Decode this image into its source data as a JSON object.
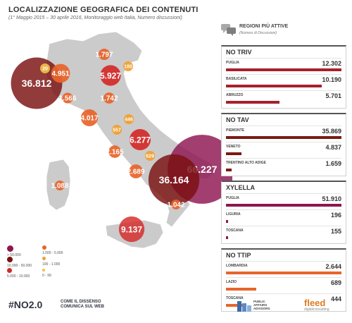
{
  "title": "LOCALIZZAZIONE GEOGRAFICA DEI CONTENUTI",
  "subtitle": "(1° Maggio 2015 – 30 aprile 2016, Monitoraggio web Italia, Numero discussioni)",
  "chart_data": {
    "type": "bubble-map",
    "title": "LOCALIZZAZIONE GEOGRAFICA DEI CONTENUTI",
    "bubbles": [
      {
        "value": "36.812",
        "v": 36812,
        "cls": "10000-50000"
      },
      {
        "value": "20",
        "v": 20,
        "cls": "0-99"
      },
      {
        "value": "4.951",
        "v": 4951,
        "cls": "1000-5000"
      },
      {
        "value": "1.797",
        "v": 1797,
        "cls": "1000-5000"
      },
      {
        "value": "5.927",
        "v": 5927,
        "cls": "5000-10000"
      },
      {
        "value": "180",
        "v": 180,
        "cls": "100-1000"
      },
      {
        "value": "1.566",
        "v": 1566,
        "cls": "1000-5000"
      },
      {
        "value": "1.742",
        "v": 1742,
        "cls": "1000-5000"
      },
      {
        "value": "4.017",
        "v": 4017,
        "cls": "1000-5000"
      },
      {
        "value": "446",
        "v": 446,
        "cls": "100-1000"
      },
      {
        "value": "557",
        "v": 557,
        "cls": "100-1000"
      },
      {
        "value": "6.277",
        "v": 6277,
        "cls": "5000-10000"
      },
      {
        "value": "2.165",
        "v": 2165,
        "cls": "1000-5000"
      },
      {
        "value": "629",
        "v": 629,
        "cls": "100-1000"
      },
      {
        "value": "2.689",
        "v": 2689,
        "cls": "1000-5000"
      },
      {
        "value": "66.227",
        "v": 66227,
        "cls": ">50000"
      },
      {
        "value": "36.164",
        "v": 36164,
        "cls": "10000-50000"
      },
      {
        "value": "1.088",
        "v": 1088,
        "cls": "1000-5000"
      },
      {
        "value": "1.042",
        "v": 1042,
        "cls": "1000-5000"
      },
      {
        "value": "9.137",
        "v": 9137,
        "cls": "5000-10000"
      }
    ],
    "legend": [
      {
        "label": "> 50.000",
        "color": "#8e1550"
      },
      {
        "label": "10.000 - 50.000",
        "color": "#7a1010"
      },
      {
        "label": "5.000 - 10.000",
        "color": "#d42a28"
      },
      {
        "label": "1.000 - 5.000",
        "color": "#e8642a"
      },
      {
        "label": "100 - 1.000",
        "color": "#f0a030"
      },
      {
        "label": "0 - 99",
        "color": "#f2c045"
      }
    ]
  },
  "panel": {
    "title": "REGIONI PIÙ ATTIVE",
    "note": "(Numero di Discussioni)",
    "sections": [
      {
        "title": "NO TRIV",
        "color": "#a8202e",
        "max": 12302,
        "rows": [
          {
            "name": "PUGLIA",
            "value": "12.302",
            "v": 12302
          },
          {
            "name": "BASILICATA",
            "value": "10.190",
            "v": 10190
          },
          {
            "name": "ABRUZZO",
            "value": "5.701",
            "v": 5701
          }
        ]
      },
      {
        "title": "NO TAV",
        "color": "#7a1a12",
        "max": 35869,
        "rows": [
          {
            "name": "PIEMONTE",
            "value": "35.869",
            "v": 35869
          },
          {
            "name": "VENETO",
            "value": "4.837",
            "v": 4837
          },
          {
            "name": "TRENTINO ALTO ADIGE",
            "value": "1.659",
            "v": 1659
          }
        ]
      },
      {
        "title": "XYLELLA",
        "color": "#8e1550",
        "max": 51910,
        "rows": [
          {
            "name": "PUGLIA",
            "value": "51.910",
            "v": 51910
          },
          {
            "name": "LIGURIA",
            "value": "196",
            "v": 196
          },
          {
            "name": "TOSCANA",
            "value": "155",
            "v": 155
          }
        ]
      },
      {
        "title": "NO TTIP",
        "color": "#e8642a",
        "max": 2644,
        "rows": [
          {
            "name": "LOMBARDIA",
            "value": "2.644",
            "v": 2644
          },
          {
            "name": "LAZIO",
            "value": "689",
            "v": 689
          },
          {
            "name": "TOSCANA",
            "value": "444",
            "v": 444
          }
        ]
      }
    ]
  },
  "footer": {
    "logo_main": "#NO2.0",
    "tagline_1": "COME IL DISSENSO",
    "tagline_2": "COMUNICA SUL WEB",
    "paa_1": "PUBLIC",
    "paa_2": "AFFAIRS",
    "paa_3": "ADVISORS",
    "fleed": "fleed",
    "fleed_sub": "digitalconsulting"
  }
}
